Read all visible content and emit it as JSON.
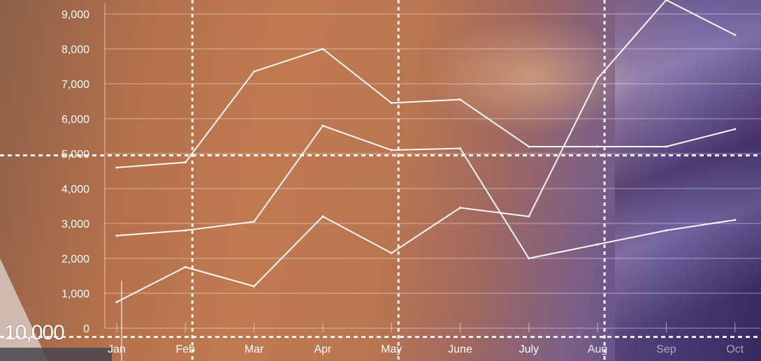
{
  "chart_data": {
    "type": "line",
    "categories": [
      "Jan",
      "Feb",
      "Mar",
      "Apr",
      "May",
      "June",
      "July",
      "Aug",
      "Sep",
      "Oct"
    ],
    "y_ticks": [
      "0",
      "1,000",
      "2,000",
      "3,000",
      "4,000",
      "5,000",
      "6,000",
      "7,000",
      "8,000",
      "9,000"
    ],
    "ylim": [
      0,
      9000
    ],
    "series": [
      {
        "values": [
          4600,
          4750,
          7350,
          8000,
          6450,
          6550,
          5200,
          5200,
          5200,
          5700
        ]
      },
      {
        "values": [
          2650,
          2800,
          3050,
          5800,
          5100,
          5150,
          2000,
          2400,
          2800,
          3100
        ]
      },
      {
        "values": [
          750,
          1750,
          1200,
          3200,
          2150,
          3450,
          3200,
          7150,
          9400,
          8400
        ]
      }
    ],
    "dashed_guides": {
      "vertical_at": [
        "Feb",
        "May",
        "Aug"
      ],
      "horizontal_at": [
        4950,
        -250
      ]
    },
    "overlay_label": "10,000",
    "grid": true,
    "line_color": "#ffffff"
  }
}
